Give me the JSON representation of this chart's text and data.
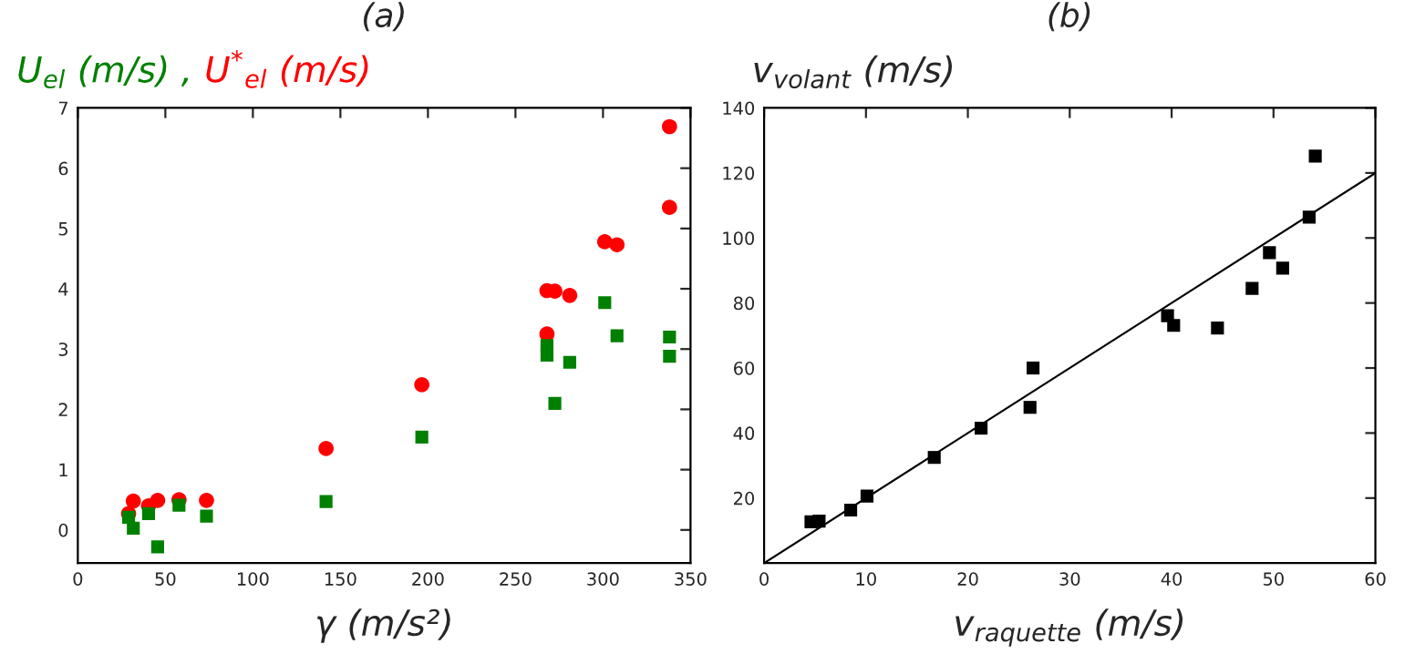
{
  "chart_data": [
    {
      "type": "scatter",
      "title": "(a)",
      "xlabel": "γ (m/s²)",
      "xlim": [
        0,
        350
      ],
      "xticks": [
        0,
        50,
        100,
        150,
        200,
        250,
        300,
        350
      ],
      "ylim": [
        -0.55,
        7
      ],
      "yticks": [
        0,
        1,
        2,
        3,
        4,
        5,
        6,
        7
      ],
      "grid": false,
      "series": [
        {
          "name": "U$_{el}$ (m/s) ,",
          "color": "#008000",
          "marker": "square",
          "x": [
            29,
            31.7,
            40.4,
            45.6,
            57.8,
            73.5,
            141.8,
            196.5,
            268,
            268,
            272.5,
            281,
            301,
            308,
            338,
            338
          ],
          "values": [
            0.21,
            0.03,
            0.27,
            -0.28,
            0.41,
            0.23,
            0.47,
            1.54,
            3.06,
            2.9,
            2.1,
            2.78,
            3.77,
            3.22,
            3.2,
            2.88
          ]
        },
        {
          "name": "U$^{*}$$_{el}$ (m/s)",
          "color": "#ff0000",
          "marker": "circle",
          "x": [
            29,
            31.7,
            40.4,
            45.6,
            57.8,
            73.5,
            141.8,
            196.5,
            268,
            268,
            272.5,
            281,
            301,
            308,
            338,
            338
          ],
          "values": [
            0.27,
            0.48,
            0.4,
            0.49,
            0.5,
            0.49,
            1.35,
            2.41,
            3.25,
            3.97,
            3.96,
            3.89,
            4.78,
            4.73,
            6.69,
            5.35
          ]
        }
      ]
    },
    {
      "type": "scatter",
      "title": "(b)",
      "xlabel": "v$_{raquette}$ (m/s)",
      "ylabel": "v$_{volant}$ (m/s)",
      "xlim": [
        0,
        60
      ],
      "xticks": [
        0,
        10,
        20,
        30,
        40,
        50,
        60
      ],
      "ylim": [
        0,
        140
      ],
      "yticks": [
        20,
        40,
        60,
        80,
        100,
        120,
        140
      ],
      "grid": false,
      "series": [
        {
          "color": "#000000",
          "marker": "square",
          "x": [
            4.6,
            5.4,
            8.5,
            10.1,
            16.7,
            21.3,
            26.1,
            26.4,
            39.6,
            40.2,
            44.5,
            47.9,
            49.6,
            50.9,
            53.5,
            54.1
          ],
          "values": [
            12.7,
            12.9,
            16.3,
            20.6,
            32.5,
            41.5,
            47.9,
            60,
            76.1,
            73.1,
            72.3,
            84.5,
            95.5,
            90.7,
            106.4,
            125.2
          ]
        },
        {
          "type": "line",
          "color": "#000000",
          "marker": "none",
          "x": [
            0,
            60
          ],
          "values": [
            0,
            120
          ]
        }
      ]
    }
  ]
}
